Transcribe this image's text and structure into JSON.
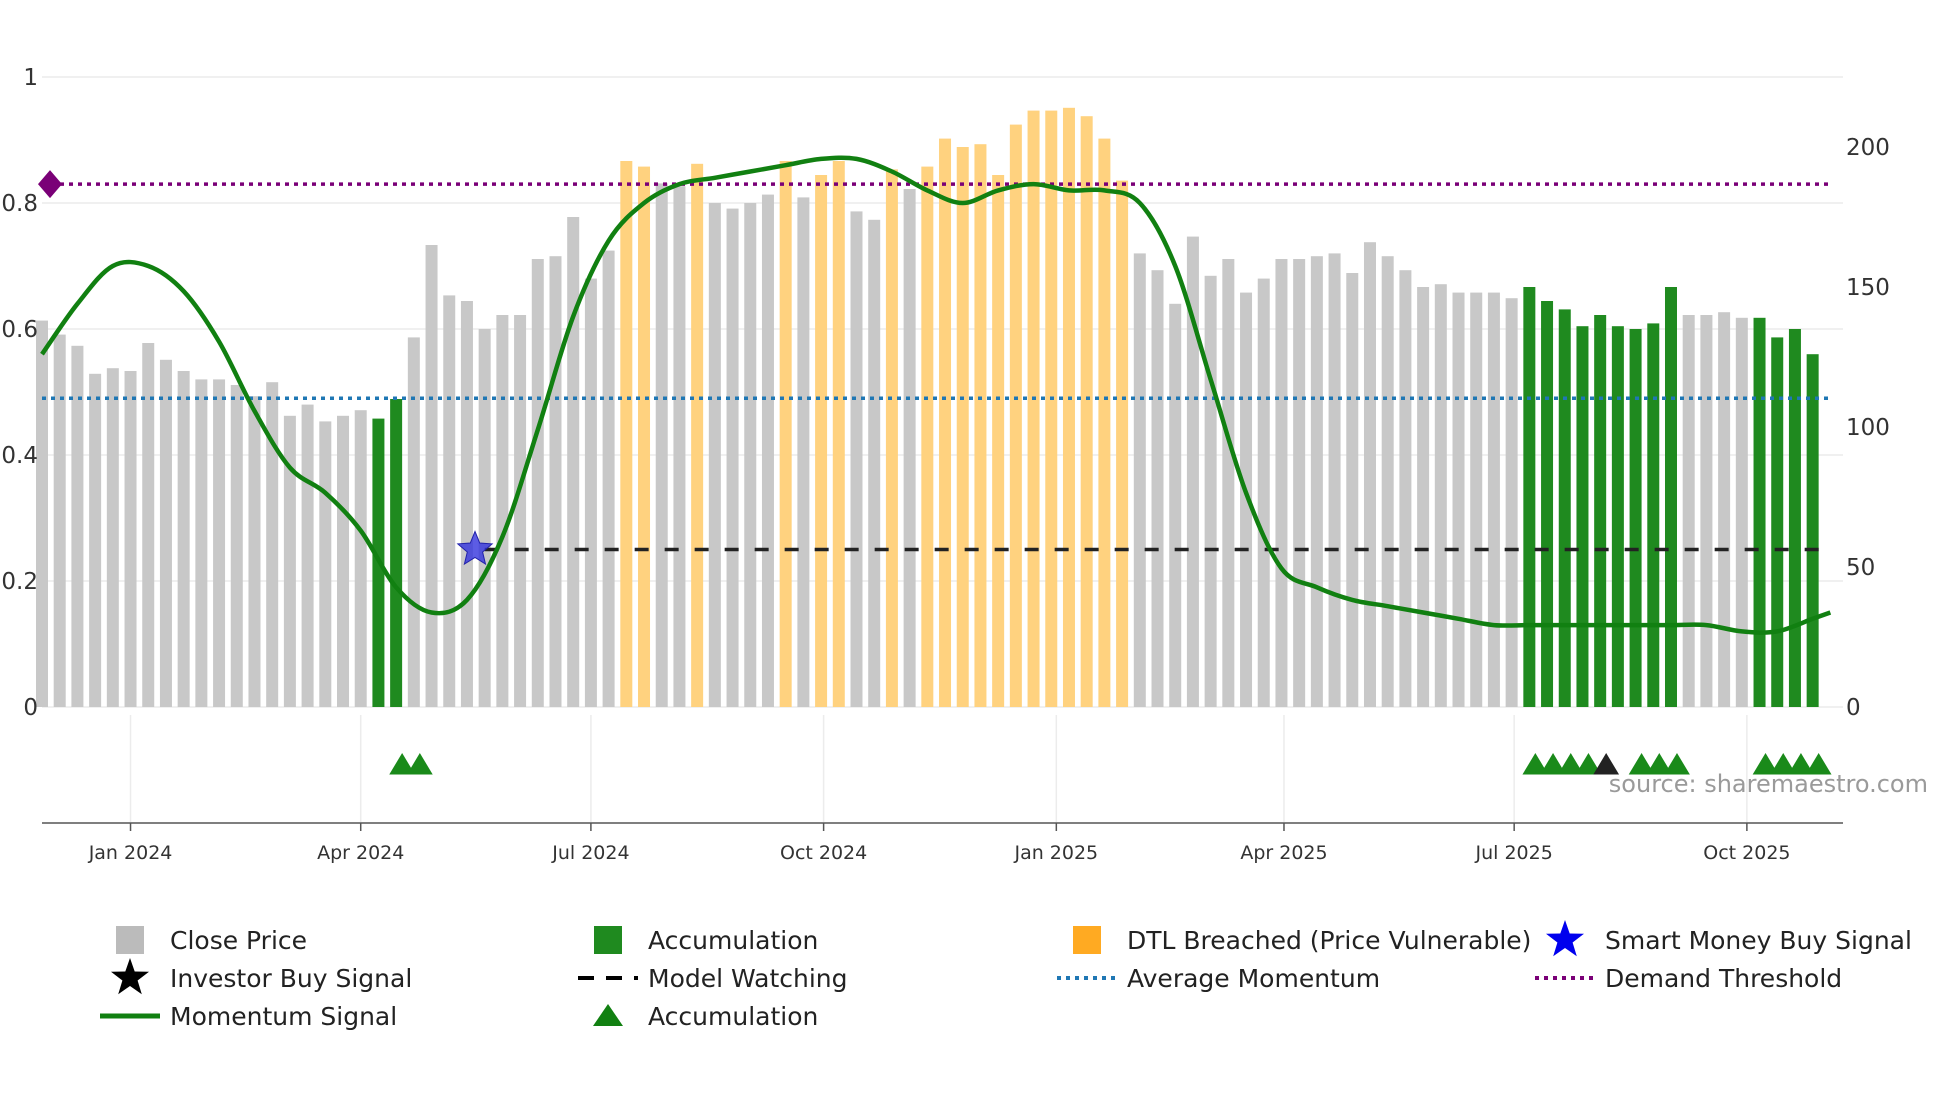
{
  "chart_data": {
    "type": "bar",
    "source": "source: sharemaestro.com",
    "left_axis": {
      "ticks": [
        0,
        0.2,
        0.4,
        0.6,
        0.8,
        1
      ],
      "labels": [
        "0",
        "0.2",
        "0.4",
        "0.6",
        "0.8",
        "1"
      ],
      "range": [
        0,
        1
      ]
    },
    "right_axis": {
      "ticks": [
        0,
        50,
        100,
        150,
        200
      ],
      "labels": [
        "0",
        "50",
        "100",
        "150",
        "200"
      ],
      "range": [
        0,
        225
      ]
    },
    "x_axis": {
      "start": "2023-11-27",
      "end": "2025-11-08",
      "ticks": [
        {
          "date": "2024-01-01",
          "label": "Jan 2024"
        },
        {
          "date": "2024-04-01",
          "label": "Apr 2024"
        },
        {
          "date": "2024-07-01",
          "label": "Jul 2024"
        },
        {
          "date": "2024-10-01",
          "label": "Oct 2024"
        },
        {
          "date": "2025-01-01",
          "label": "Jan 2025"
        },
        {
          "date": "2025-04-01",
          "label": "Apr 2025"
        },
        {
          "date": "2025-07-01",
          "label": "Jul 2025"
        },
        {
          "date": "2025-10-01",
          "label": "Oct 2025"
        }
      ]
    },
    "bars": {
      "start_date": "2023-11-27",
      "step_days": 7,
      "close": [
        138,
        133,
        129,
        119,
        121,
        120,
        130,
        124,
        120,
        117,
        117,
        115,
        111,
        116,
        104,
        108,
        102,
        104,
        106,
        103,
        110,
        132,
        165,
        147,
        145,
        135,
        140,
        140,
        160,
        161,
        175,
        153,
        163,
        195,
        193,
        187,
        186,
        194,
        180,
        178,
        180,
        183,
        195,
        182,
        190,
        195,
        177,
        174,
        192,
        185,
        193,
        203,
        200,
        201,
        190,
        208,
        213,
        213,
        214,
        211,
        203,
        188,
        162,
        156,
        144,
        168,
        154,
        160,
        148,
        153,
        160,
        160,
        161,
        162,
        155,
        166,
        161,
        156,
        150,
        151,
        148,
        148,
        148,
        146,
        150,
        145,
        142,
        136,
        140,
        136,
        135,
        137,
        150,
        140,
        140,
        141,
        139,
        139,
        132,
        135,
        126
      ],
      "category": [
        "grey",
        "grey",
        "grey",
        "grey",
        "grey",
        "grey",
        "grey",
        "grey",
        "grey",
        "grey",
        "grey",
        "grey",
        "grey",
        "grey",
        "grey",
        "grey",
        "grey",
        "grey",
        "grey",
        "green",
        "green",
        "grey",
        "grey",
        "grey",
        "grey",
        "grey",
        "grey",
        "grey",
        "grey",
        "grey",
        "grey",
        "grey",
        "grey",
        "orange",
        "orange",
        "grey",
        "grey",
        "orange",
        "grey",
        "grey",
        "grey",
        "grey",
        "orange",
        "grey",
        "orange",
        "orange",
        "grey",
        "grey",
        "orange",
        "grey",
        "orange",
        "orange",
        "orange",
        "orange",
        "orange",
        "orange",
        "orange",
        "orange",
        "orange",
        "orange",
        "orange",
        "orange",
        "grey",
        "grey",
        "grey",
        "grey",
        "grey",
        "grey",
        "grey",
        "grey",
        "grey",
        "grey",
        "grey",
        "grey",
        "grey",
        "grey",
        "grey",
        "grey",
        "grey",
        "grey",
        "grey",
        "grey",
        "grey",
        "grey",
        "green",
        "green",
        "green",
        "green",
        "green",
        "green",
        "green",
        "green",
        "green",
        "grey",
        "grey",
        "grey",
        "grey",
        "green",
        "green",
        "green",
        "green"
      ]
    },
    "series": [
      {
        "name": "Momentum Signal",
        "axis": "left",
        "color": "#118011",
        "points": [
          [
            "2023-11-27",
            0.56
          ],
          [
            "2023-12-11",
            0.64
          ],
          [
            "2023-12-25",
            0.7
          ],
          [
            "2024-01-08",
            0.7
          ],
          [
            "2024-01-22",
            0.66
          ],
          [
            "2024-02-05",
            0.58
          ],
          [
            "2024-02-19",
            0.47
          ],
          [
            "2024-03-04",
            0.38
          ],
          [
            "2024-03-18",
            0.34
          ],
          [
            "2024-04-01",
            0.28
          ],
          [
            "2024-04-15",
            0.19
          ],
          [
            "2024-04-29",
            0.15
          ],
          [
            "2024-05-13",
            0.17
          ],
          [
            "2024-05-27",
            0.27
          ],
          [
            "2024-06-10",
            0.44
          ],
          [
            "2024-06-24",
            0.62
          ],
          [
            "2024-07-08",
            0.74
          ],
          [
            "2024-07-22",
            0.8
          ],
          [
            "2024-08-05",
            0.83
          ],
          [
            "2024-08-19",
            0.84
          ],
          [
            "2024-09-02",
            0.85
          ],
          [
            "2024-09-16",
            0.86
          ],
          [
            "2024-09-30",
            0.87
          ],
          [
            "2024-10-14",
            0.87
          ],
          [
            "2024-10-28",
            0.85
          ],
          [
            "2024-11-11",
            0.82
          ],
          [
            "2024-11-25",
            0.8
          ],
          [
            "2024-12-09",
            0.82
          ],
          [
            "2024-12-23",
            0.83
          ],
          [
            "2025-01-06",
            0.82
          ],
          [
            "2025-01-20",
            0.82
          ],
          [
            "2025-02-03",
            0.8
          ],
          [
            "2025-02-17",
            0.7
          ],
          [
            "2025-03-03",
            0.52
          ],
          [
            "2025-03-17",
            0.34
          ],
          [
            "2025-03-31",
            0.22
          ],
          [
            "2025-04-14",
            0.19
          ],
          [
            "2025-04-28",
            0.17
          ],
          [
            "2025-05-12",
            0.16
          ],
          [
            "2025-05-26",
            0.15
          ],
          [
            "2025-06-09",
            0.14
          ],
          [
            "2025-06-23",
            0.13
          ],
          [
            "2025-07-07",
            0.13
          ],
          [
            "2025-07-21",
            0.13
          ],
          [
            "2025-08-04",
            0.13
          ],
          [
            "2025-08-18",
            0.13
          ],
          [
            "2025-09-01",
            0.13
          ],
          [
            "2025-09-15",
            0.13
          ],
          [
            "2025-09-29",
            0.12
          ],
          [
            "2025-10-13",
            0.12
          ],
          [
            "2025-10-27",
            0.14
          ],
          [
            "2025-11-03",
            0.15
          ]
        ]
      }
    ],
    "lines": [
      {
        "name": "Demand Threshold",
        "axis": "left",
        "value": 0.83,
        "color": "#7a0077"
      },
      {
        "name": "Average Momentum",
        "axis": "left",
        "value": 0.49,
        "color": "#1f77b4"
      },
      {
        "name": "Model Watching",
        "axis": "left",
        "value": 0.25,
        "from": "2024-05-20",
        "color": "#222222"
      }
    ],
    "markers": {
      "smart_money_star": {
        "date": "2024-05-13",
        "value": 0.25
      },
      "threshold_diamond": {
        "date": "2023-11-27",
        "value": 0.83
      },
      "accumulation_triangles": [
        "2024-04-15",
        "2024-04-22",
        "2025-07-07",
        "2025-07-14",
        "2025-07-21",
        "2025-07-28",
        "2025-08-18",
        "2025-08-25",
        "2025-09-01",
        "2025-10-06",
        "2025-10-13",
        "2025-10-20",
        "2025-10-27"
      ],
      "investor_buy_triangles": [
        "2025-08-04"
      ]
    },
    "legend": [
      {
        "label": "Close Price",
        "symbol": "square",
        "color": "#bbbbbb"
      },
      {
        "label": "Accumulation",
        "symbol": "square",
        "color": "#1f8a1f"
      },
      {
        "label": "DTL Breached (Price Vulnerable)",
        "symbol": "square",
        "color": "#ffaa22"
      },
      {
        "label": "Smart Money Buy Signal",
        "symbol": "star",
        "color": "#0000ee"
      },
      {
        "label": "Investor Buy Signal",
        "symbol": "star",
        "color": "#000000"
      },
      {
        "label": "Model Watching",
        "symbol": "dash",
        "color": "#000000"
      },
      {
        "label": "Average Momentum",
        "symbol": "dot",
        "color": "#1f77b4"
      },
      {
        "label": "Demand Threshold",
        "symbol": "dot",
        "color": "#7a0077"
      },
      {
        "label": "Momentum Signal",
        "symbol": "line",
        "color": "#118011"
      },
      {
        "label": "Accumulation",
        "symbol": "triangle",
        "color": "#118011"
      }
    ],
    "colors": {
      "grey": "#c8c8c8",
      "green": "#1f8a1f",
      "orange": "#ffd27f"
    }
  }
}
